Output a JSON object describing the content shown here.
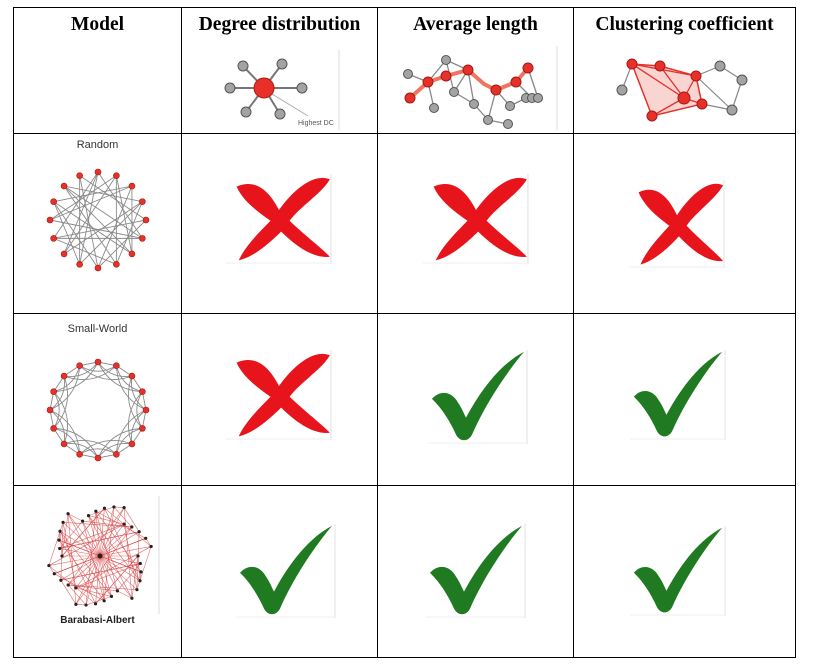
{
  "header": {
    "model": "Model",
    "degree": "Degree distribution",
    "avg_length": "Average length",
    "clustering": "Clustering coefficient",
    "highest_dc": "Highest DC"
  },
  "rows": [
    {
      "model": "Random",
      "degree": "cross",
      "avg_length": "cross",
      "clustering": "cross"
    },
    {
      "model": "Small-World",
      "degree": "cross",
      "avg_length": "check",
      "clustering": "check"
    },
    {
      "model": "Barabasi-Albert",
      "degree": "check",
      "avg_length": "check",
      "clustering": "check"
    }
  ],
  "colors": {
    "cross": "#e8141c",
    "check": "#1f7a22",
    "node_red": "#e8302a",
    "node_gray": "#a0a0a0",
    "edge": "#888888"
  }
}
